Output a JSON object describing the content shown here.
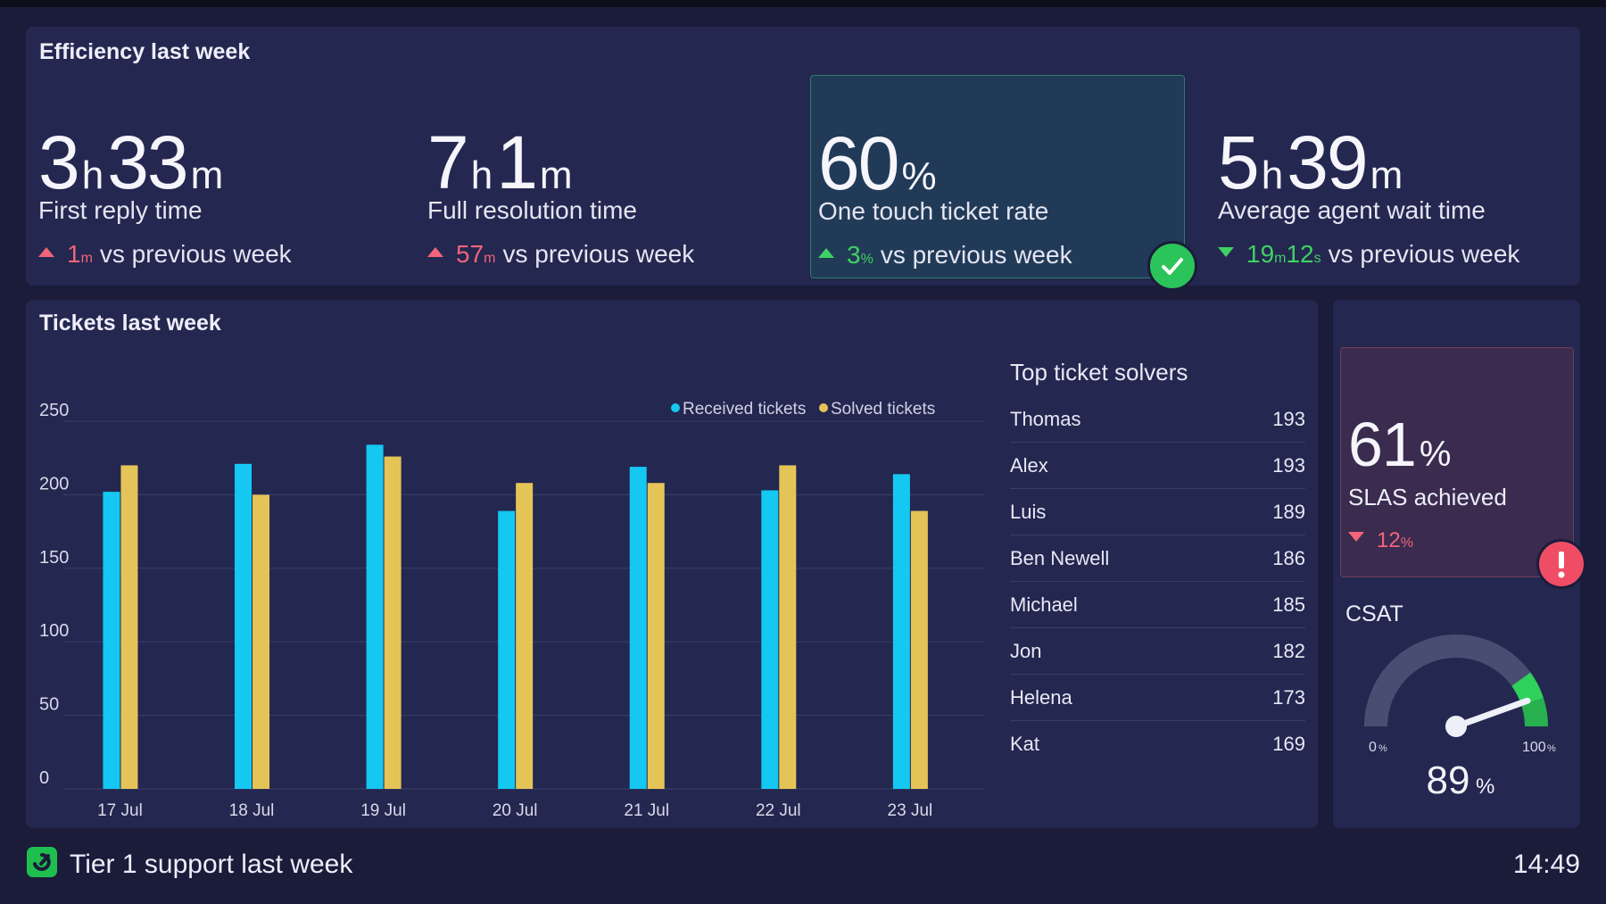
{
  "efficiency": {
    "title": "Efficiency last week",
    "metrics": [
      {
        "value_parts": [
          "3",
          "h",
          "33",
          "m"
        ],
        "label": "First reply time",
        "delta_value": "1",
        "delta_unit": "m",
        "delta_suffix": "vs previous week",
        "direction": "up",
        "tone": "red",
        "highlighted": false
      },
      {
        "value_parts": [
          "7",
          "h",
          "1",
          "m"
        ],
        "label": "Full resolution time",
        "delta_value": "57",
        "delta_unit": "m",
        "delta_suffix": "vs previous week",
        "direction": "up",
        "tone": "red",
        "highlighted": false
      },
      {
        "value_parts": [
          "60",
          "%"
        ],
        "label": "One touch ticket rate",
        "delta_value": "3",
        "delta_unit": "%",
        "delta_suffix": "vs previous week",
        "direction": "up",
        "tone": "green",
        "highlighted": true,
        "badge": "check-icon"
      },
      {
        "value_parts": [
          "5",
          "h",
          "39",
          "m"
        ],
        "label": "Average agent wait time",
        "delta_value": "19",
        "delta_unit": "m",
        "delta_value2": "12",
        "delta_unit2": "s",
        "delta_suffix": "vs previous week",
        "direction": "down",
        "tone": "green",
        "highlighted": false
      }
    ]
  },
  "tickets": {
    "title": "Tickets last week",
    "legend": [
      "Received tickets",
      "Solved tickets"
    ],
    "solvers_title": "Top ticket solvers",
    "solvers": [
      {
        "name": "Thomas",
        "count": "193"
      },
      {
        "name": "Alex",
        "count": "193"
      },
      {
        "name": "Luis",
        "count": "189"
      },
      {
        "name": "Ben Newell",
        "count": "186"
      },
      {
        "name": "Michael",
        "count": "185"
      },
      {
        "name": "Jon",
        "count": "182"
      },
      {
        "name": "Helena",
        "count": "173"
      },
      {
        "name": "Kat",
        "count": "169"
      }
    ]
  },
  "chart_data": {
    "type": "bar",
    "categories": [
      "17 Jul",
      "18 Jul",
      "19 Jul",
      "20 Jul",
      "21 Jul",
      "22 Jul",
      "23 Jul"
    ],
    "series": [
      {
        "name": "Received tickets",
        "values": [
          202,
          221,
          234,
          189,
          219,
          203,
          214
        ],
        "color": "#14c8f2"
      },
      {
        "name": "Solved tickets",
        "values": [
          220,
          200,
          226,
          208,
          208,
          220,
          189
        ],
        "color": "#e5c457"
      }
    ],
    "yticks": [
      0,
      50,
      100,
      150,
      200,
      250
    ],
    "ylim": [
      0,
      250
    ],
    "grid": true,
    "legend_position": "top-right"
  },
  "sla": {
    "value": "61",
    "unit": "%",
    "label": "SLAS achieved",
    "delta_value": "12",
    "delta_unit": "%",
    "direction": "down",
    "badge": "alert-icon"
  },
  "csat": {
    "title": "CSAT",
    "value": "89",
    "unit": "%",
    "min_label": "0",
    "min_unit": "%",
    "max_label": "100",
    "max_unit": "%",
    "fraction": 0.89
  },
  "footer": {
    "title": "Tier 1 support last week",
    "time": "14:49"
  },
  "colors": {
    "bg": "#1b1c3a",
    "panel": "#24274f",
    "red": "#f2647a",
    "green": "#3ed163",
    "received": "#14c8f2",
    "solved": "#e5c457"
  }
}
